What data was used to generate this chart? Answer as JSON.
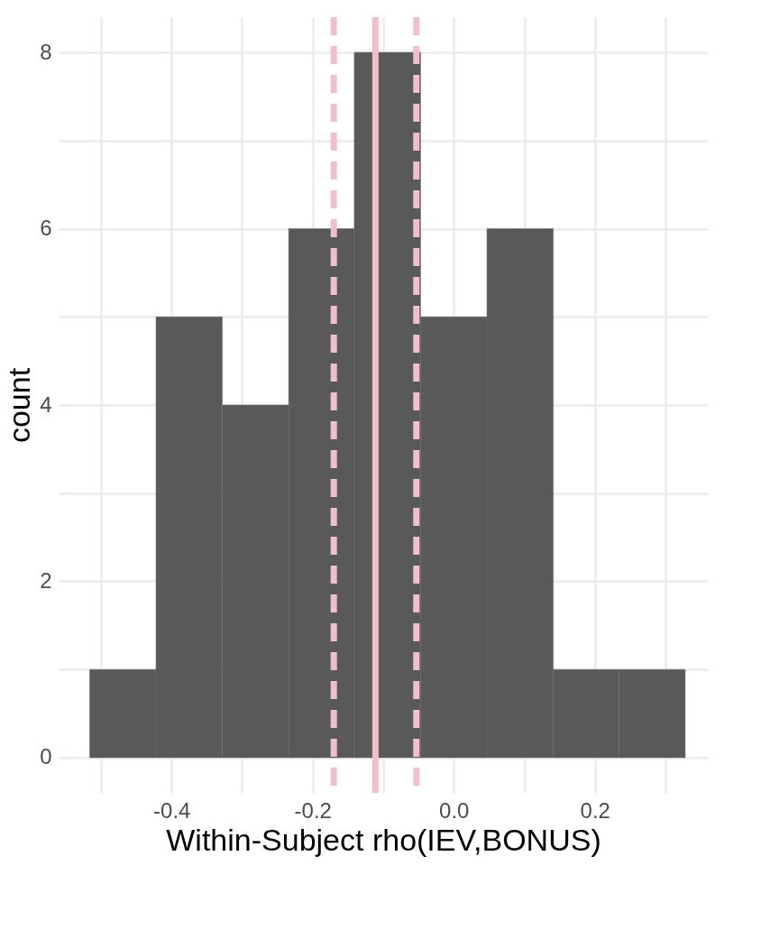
{
  "chart_data": {
    "type": "histogram",
    "xlabel": "Within-Subject rho(IEV,BONUS)",
    "ylabel": "count",
    "bins": [
      -0.516,
      -0.422,
      -0.328,
      -0.234,
      -0.141,
      -0.047,
      0.047,
      0.141,
      0.234,
      0.328
    ],
    "values": [
      1,
      5,
      4,
      6,
      8,
      5,
      6,
      1,
      1
    ],
    "color": "#595959",
    "xlim": [
      -0.56,
      0.36
    ],
    "ylim": [
      -0.4,
      8.4
    ],
    "xticks": [
      {
        "value": -0.5,
        "label": null
      },
      -0.4,
      {
        "value": -0.3,
        "label": null
      },
      -0.2,
      {
        "value": -0.1,
        "label": null
      },
      {
        "value": 0.0,
        "label": "0.0"
      },
      {
        "value": 0.1,
        "label": null
      },
      0.2,
      {
        "value": 0.3,
        "label": null
      }
    ],
    "yticks": [
      0,
      {
        "value": 1,
        "label": null
      },
      2,
      {
        "value": 3,
        "label": null
      },
      4,
      {
        "value": 5,
        "label": null
      },
      6,
      {
        "value": 7,
        "label": null
      },
      8
    ],
    "grid": true,
    "ref_lines": [
      {
        "axis": "x",
        "value": -0.111,
        "color": "#f0bfca",
        "line_style": "solid"
      },
      {
        "axis": "x",
        "value": -0.17,
        "color": "#f0bfca",
        "line_style": "dashed"
      },
      {
        "axis": "x",
        "value": -0.053,
        "color": "#f0bfca",
        "line_style": "dashed"
      }
    ]
  }
}
